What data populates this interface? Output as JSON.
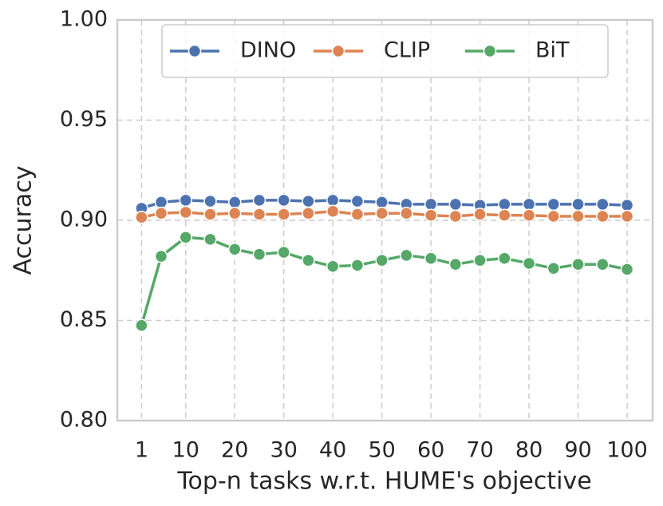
{
  "chart_data": {
    "type": "line",
    "xlabel": "Top-n tasks w.r.t. HUME's objective",
    "ylabel": "Accuracy",
    "x": [
      1,
      5,
      10,
      15,
      20,
      25,
      30,
      35,
      40,
      45,
      50,
      55,
      60,
      65,
      70,
      75,
      80,
      85,
      90,
      95,
      100
    ],
    "series": [
      {
        "name": "DINO",
        "color": "#4c72b0",
        "values": [
          0.906,
          0.909,
          0.91,
          0.9095,
          0.909,
          0.91,
          0.91,
          0.9095,
          0.91,
          0.9095,
          0.909,
          0.908,
          0.908,
          0.908,
          0.9075,
          0.908,
          0.908,
          0.908,
          0.908,
          0.908,
          0.9075
        ]
      },
      {
        "name": "CLIP",
        "color": "#dd8452",
        "values": [
          0.9015,
          0.9035,
          0.904,
          0.903,
          0.9035,
          0.903,
          0.903,
          0.9035,
          0.9045,
          0.903,
          0.9035,
          0.9035,
          0.9025,
          0.902,
          0.903,
          0.9025,
          0.9025,
          0.902,
          0.902,
          0.902,
          0.902
        ]
      },
      {
        "name": "BiT",
        "color": "#55a868",
        "values": [
          0.8475,
          0.882,
          0.8915,
          0.8905,
          0.8855,
          0.883,
          0.884,
          0.88,
          0.877,
          0.8775,
          0.88,
          0.8825,
          0.881,
          0.878,
          0.88,
          0.881,
          0.8785,
          0.876,
          0.878,
          0.878,
          0.8755
        ]
      }
    ],
    "xlim": [
      -3.95,
      105.2
    ],
    "xticks": [
      1,
      10,
      20,
      30,
      40,
      50,
      60,
      70,
      80,
      90,
      100
    ],
    "ylim": [
      0.8,
      1.0
    ],
    "yticks": [
      {
        "value": 0.8,
        "label": "0.80"
      },
      0.85,
      {
        "value": 0.9,
        "label": "0.90"
      },
      0.95,
      {
        "value": 1.0,
        "label": "1.00"
      }
    ],
    "grid": true,
    "legend": "upper center"
  }
}
